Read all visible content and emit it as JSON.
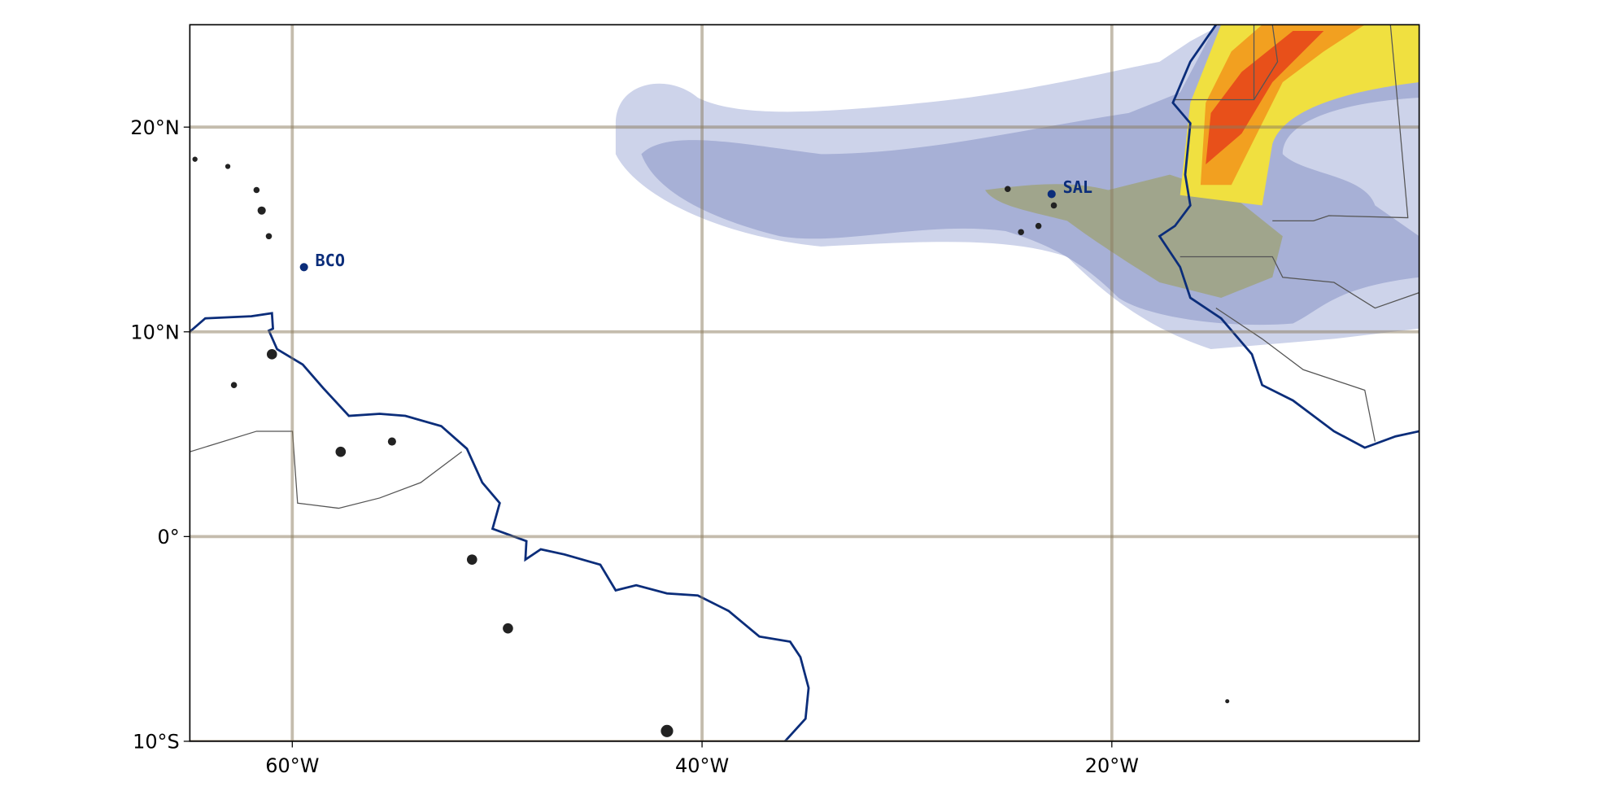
{
  "map": {
    "xlim": [
      -65,
      -5
    ],
    "ylim": [
      -10,
      25
    ],
    "xticks": [
      {
        "value": -60,
        "label": "60°W"
      },
      {
        "value": -40,
        "label": "40°W"
      },
      {
        "value": -20,
        "label": "20°W"
      }
    ],
    "yticks": [
      {
        "value": -10,
        "label": "10°S"
      },
      {
        "value": 0,
        "label": "0°"
      },
      {
        "value": 10,
        "label": "10°N"
      },
      {
        "value": 20,
        "label": "20°N"
      }
    ],
    "stations": [
      {
        "name": "BCO",
        "lon": -59.43,
        "lat": 13.16
      },
      {
        "name": "SAL",
        "lon": -22.94,
        "lat": 16.73
      }
    ]
  }
}
